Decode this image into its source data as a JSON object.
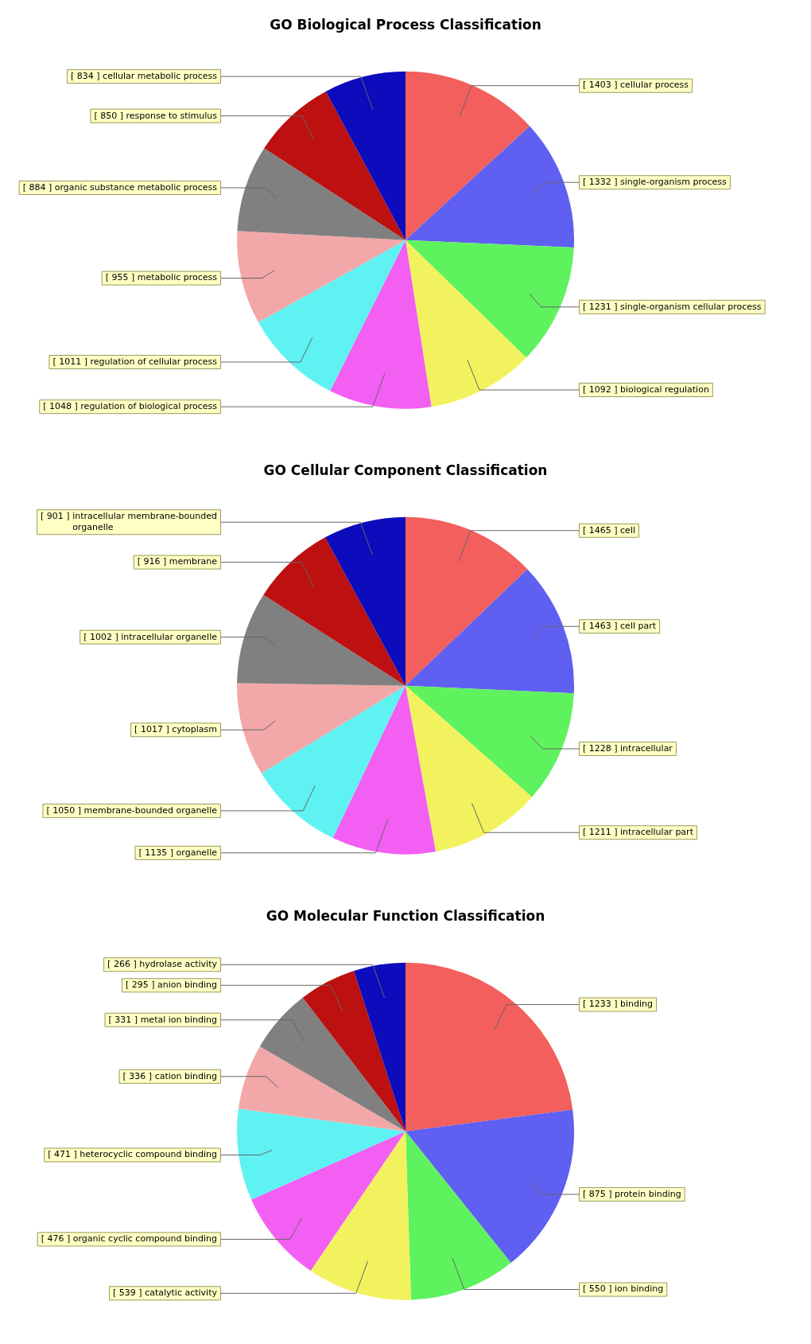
{
  "chart_data": [
    {
      "type": "pie",
      "title": "GO Biological Process Classification",
      "categories": [
        "cellular process",
        "single-organism process",
        "single-organism cellular process",
        "biological regulation",
        "regulation of biological process",
        "regulation of cellular process",
        "metabolic process",
        "organic substance metabolic process",
        "response to stimulus",
        "cellular metabolic process"
      ],
      "values": [
        1403,
        1332,
        1231,
        1092,
        1048,
        1011,
        955,
        884,
        850,
        834
      ],
      "value_labels": [
        "[ 1403 ]",
        "[ 1332 ]",
        "[ 1231 ]",
        "[ 1092 ]",
        "[ 1048 ]",
        "[ 1011 ]",
        "[ 955 ]",
        "[ 884 ]",
        "[ 850 ]",
        "[ 834 ]"
      ],
      "colors": [
        "#f25f5c",
        "#5f5ff2",
        "#5ff25f",
        "#f2f25f",
        "#f25ff2",
        "#5ff2f2",
        "#f2a8a8",
        "#808080",
        "#bd1010",
        "#0c0cbd"
      ],
      "legend": false
    },
    {
      "type": "pie",
      "title": "GO Cellular Component Classification",
      "categories": [
        "cell",
        "cell part",
        "intracellular",
        "intracellular part",
        "organelle",
        "membrane-bounded organelle",
        "cytoplasm",
        "intracellular organelle",
        "membrane",
        "intracellular membrane-bounded organelle"
      ],
      "values": [
        1465,
        1463,
        1228,
        1211,
        1135,
        1050,
        1017,
        1002,
        916,
        901
      ],
      "value_labels": [
        "[ 1465 ]",
        "[ 1463 ]",
        "[ 1228 ]",
        "[ 1211 ]",
        "[ 1135 ]",
        "[ 1050 ]",
        "[ 1017 ]",
        "[ 1002 ]",
        "[ 916 ]",
        "[ 901 ]"
      ],
      "colors": [
        "#f25f5c",
        "#5f5ff2",
        "#5ff25f",
        "#f2f25f",
        "#f25ff2",
        "#5ff2f2",
        "#f2a8a8",
        "#808080",
        "#bd1010",
        "#0c0cbd"
      ],
      "legend": false
    },
    {
      "type": "pie",
      "title": "GO Molecular Function Classification",
      "categories": [
        "binding",
        "protein binding",
        "ion binding",
        "catalytic activity",
        "organic cyclic compound binding",
        "heterocyclic compound binding",
        "cation binding",
        "metal ion binding",
        "anion binding",
        "hydrolase activity"
      ],
      "values": [
        1233,
        875,
        550,
        539,
        476,
        471,
        336,
        331,
        295,
        266
      ],
      "value_labels": [
        "[ 1233 ]",
        "[ 875 ]",
        "[ 550 ]",
        "[ 539 ]",
        "[ 476 ]",
        "[ 471 ]",
        "[ 336 ]",
        "[ 331 ]",
        "[ 295 ]",
        "[ 266 ]"
      ],
      "colors": [
        "#f25f5c",
        "#5f5ff2",
        "#5ff25f",
        "#f2f25f",
        "#f25ff2",
        "#5ff2f2",
        "#f2a8a8",
        "#808080",
        "#bd1010",
        "#0c0cbd"
      ],
      "legend": false
    }
  ]
}
